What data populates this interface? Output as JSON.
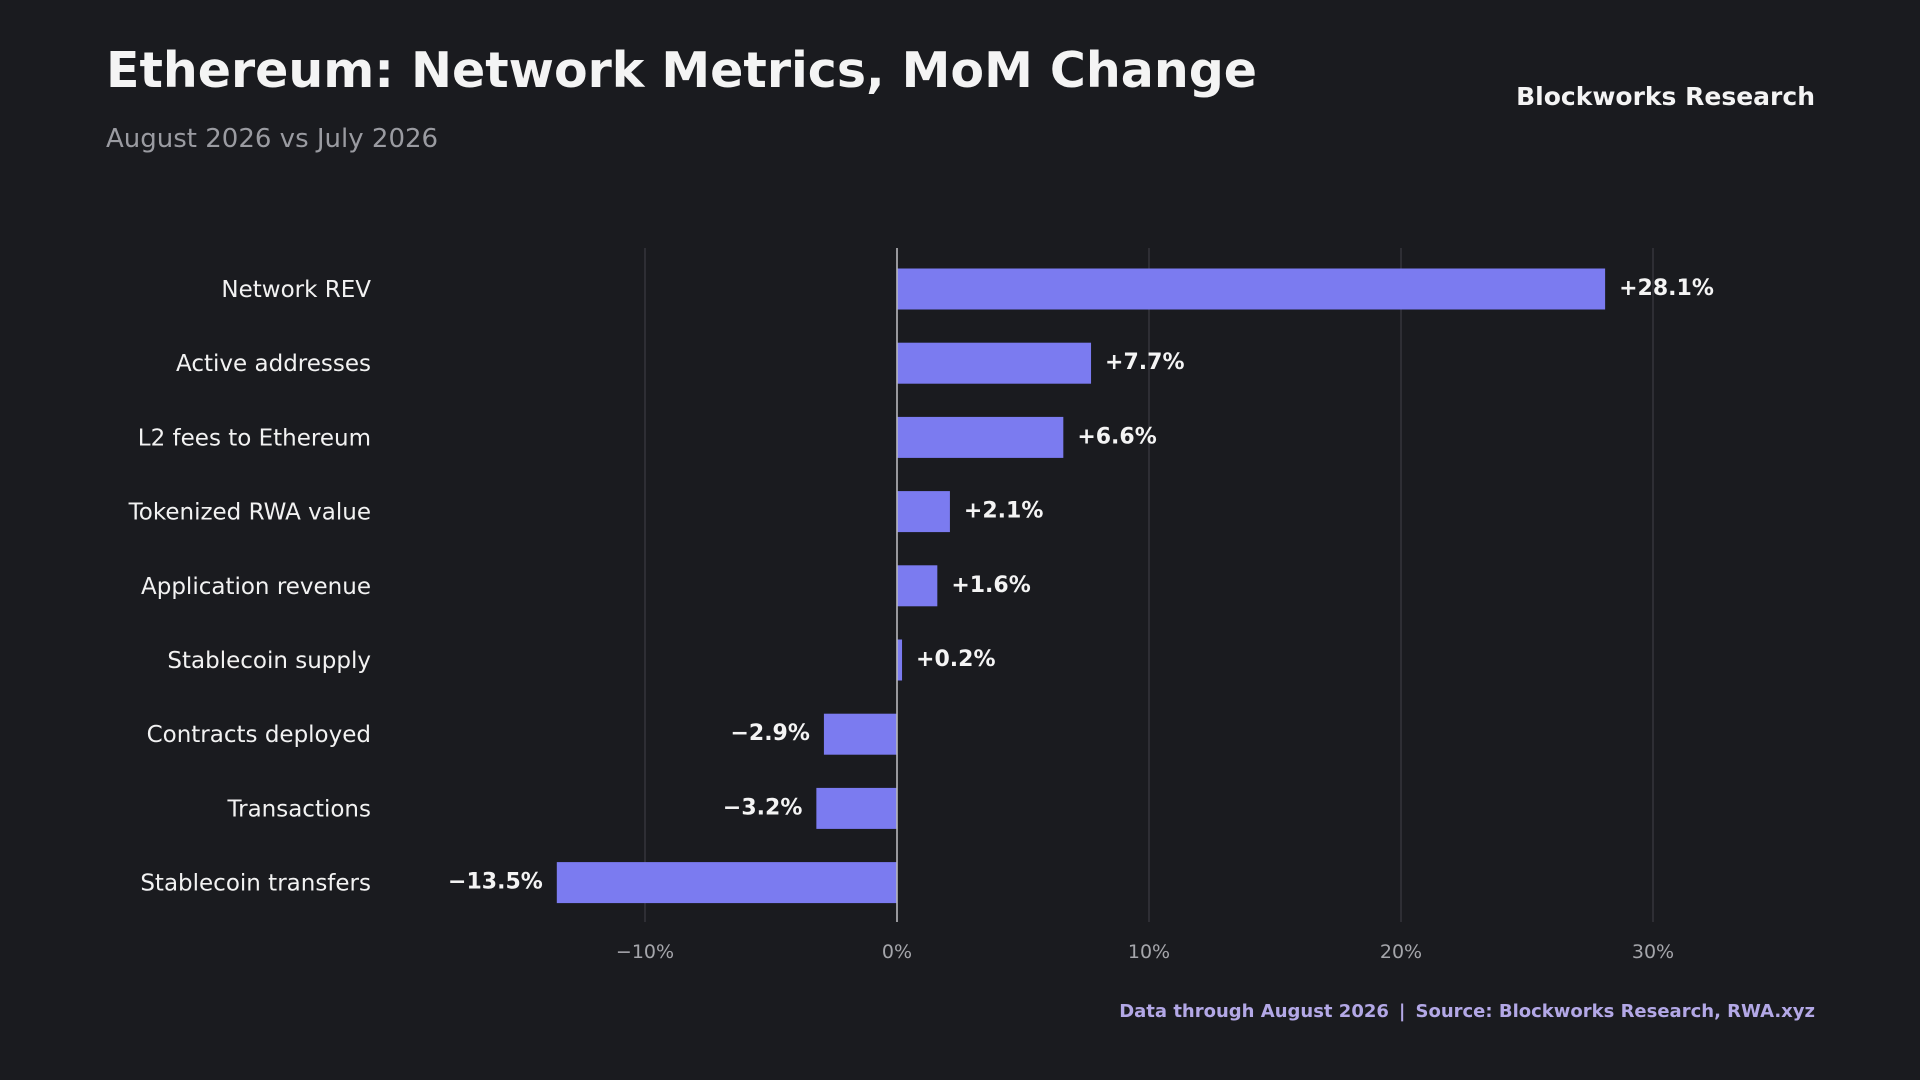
{
  "header": {
    "title": "Ethereum: Network Metrics, MoM Change",
    "subtitle": "August 2026 vs July 2026",
    "brand": "Blockworks Research"
  },
  "footer": {
    "data_note": "Data through August 2026",
    "separator": "|",
    "source": "Source: Blockworks Research, RWA.xyz"
  },
  "colors": {
    "background": "#1a1b1f",
    "bar": "#7b7bf0",
    "gridline": "#34353b",
    "zero_line": "#b8b8bc"
  },
  "chart_data": {
    "type": "bar",
    "orientation": "horizontal",
    "categories": [
      "Network REV",
      "Active addresses",
      "L2 fees to Ethereum",
      "Tokenized RWA value",
      "Application revenue",
      "Stablecoin supply",
      "Contracts deployed",
      "Transactions",
      "Stablecoin transfers"
    ],
    "values": [
      28.1,
      7.7,
      6.6,
      2.1,
      1.6,
      0.2,
      -2.9,
      -3.2,
      -13.5
    ],
    "value_labels": [
      "+28.1%",
      "+7.7%",
      "+6.6%",
      "+2.1%",
      "+1.6%",
      "+0.2%",
      "−2.9%",
      "−3.2%",
      "−13.5%"
    ],
    "xticks": [
      -10,
      0,
      10,
      20,
      30
    ],
    "xtick_labels": [
      "−10%",
      "0%",
      "10%",
      "20%",
      "30%"
    ],
    "xlim": [
      -19.5,
      37
    ],
    "grid": "vertical",
    "legend": "none"
  }
}
